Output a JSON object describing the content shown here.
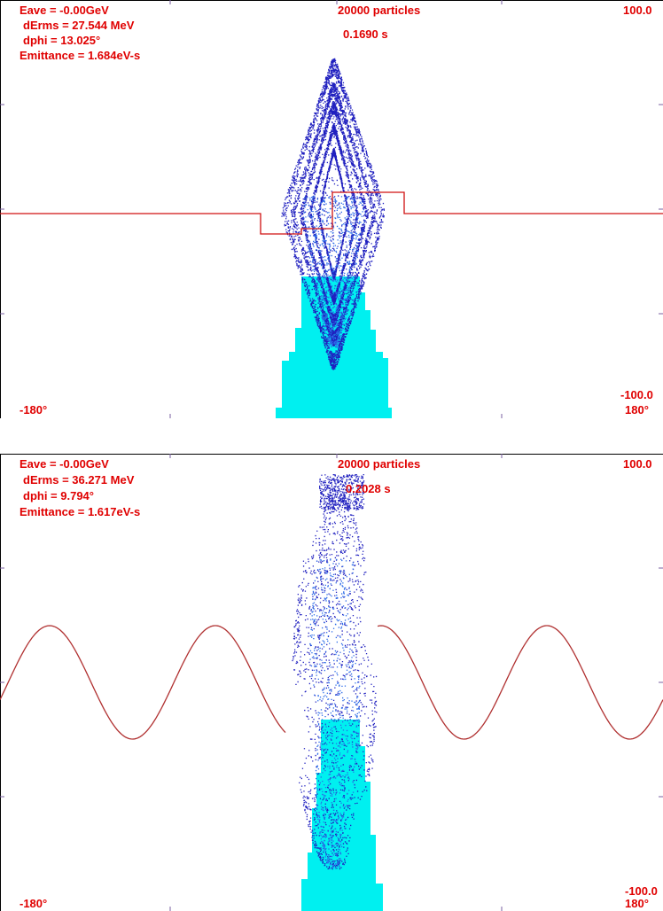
{
  "panels": [
    {
      "stats": {
        "eave": "Eave =   -0.00GeV",
        "derms": "dErms = 27.544 MeV",
        "dphi": "dphi = 13.025°",
        "emittance": "Emittance =  1.684eV-s"
      },
      "particles": "20000 particles",
      "time": "0.1690 s",
      "y_max": "100.0",
      "y_min": "-100.0",
      "x_min": "-180°",
      "x_max": "180°",
      "voltage_shape": "square",
      "shape": "lens"
    },
    {
      "stats": {
        "eave": "Eave =   -0.00GeV",
        "derms": "dErms = 36.271 MeV",
        "dphi": "dphi =  9.794°",
        "emittance": "Emittance =  1.617eV-s"
      },
      "particles": "20000 particles",
      "time": "0.2028 s",
      "y_max": "100.0",
      "y_min": "-100.0",
      "x_min": "-180°",
      "x_max": "180°",
      "voltage_shape": "sine",
      "shape": "swirl"
    }
  ],
  "colors": {
    "frame": "#000000",
    "axis": "#7a5fa0",
    "text": "#e00000",
    "voltage": "#d01010",
    "voltage_sine": "#b03030",
    "particles": "#1f1fbf",
    "particles_light": "#2a6ae8",
    "histogram": "#00f0f0"
  }
}
